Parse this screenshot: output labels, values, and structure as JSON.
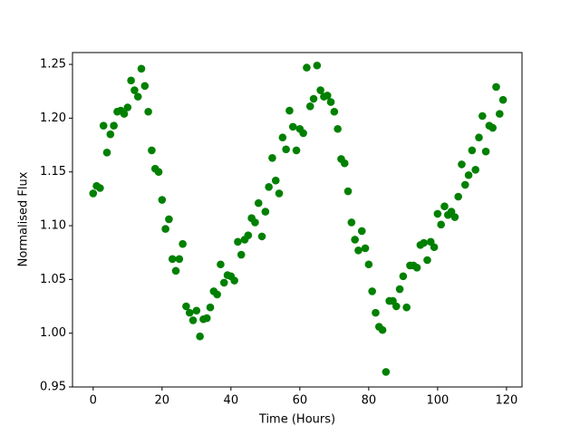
{
  "chart_data": {
    "type": "scatter",
    "x_label": "Time (Hours)",
    "y_label": "Normalised Flux",
    "color": "#008000",
    "grid": false,
    "xlim": [
      -6,
      124.5
    ],
    "ylim": [
      0.95,
      1.261
    ],
    "xticks": [
      0,
      20,
      40,
      60,
      80,
      100,
      120
    ],
    "yticks": [
      0.95,
      {
        "value": 1,
        "label": "1.00"
      },
      1.05,
      {
        "value": 1.1,
        "label": "1.10"
      },
      1.15,
      {
        "value": 1.2,
        "label": "1.20"
      },
      1.25
    ],
    "x": [
      0,
      1,
      2,
      3,
      4,
      5,
      6,
      7,
      8,
      9,
      10,
      11,
      12,
      13,
      14,
      15,
      16,
      17,
      18,
      19,
      20,
      21,
      22,
      23,
      24,
      25,
      26,
      27,
      28,
      29,
      30,
      31,
      32,
      33,
      34,
      35,
      36,
      37,
      38,
      39,
      40,
      41,
      42,
      43,
      44,
      45,
      46,
      47,
      48,
      49,
      50,
      51,
      52,
      53,
      54,
      55,
      56,
      57,
      58,
      59,
      60,
      61,
      62,
      63,
      64,
      65,
      66,
      67,
      68,
      69,
      70,
      71,
      72,
      73,
      74,
      75,
      76,
      77,
      78,
      79,
      80,
      81,
      82,
      83,
      84,
      85,
      86,
      87,
      88,
      89,
      90,
      91,
      92,
      93,
      94,
      95,
      96,
      97,
      98,
      99,
      100,
      101,
      102,
      103,
      104,
      105,
      106,
      107,
      108,
      109,
      110,
      111,
      112,
      113,
      114,
      115,
      116,
      117,
      118,
      119
    ],
    "values": [
      1.13,
      1.137,
      1.135,
      1.193,
      1.168,
      1.185,
      1.193,
      1.206,
      1.207,
      1.204,
      1.21,
      1.235,
      1.226,
      1.22,
      1.246,
      1.23,
      1.206,
      1.17,
      1.153,
      1.15,
      1.124,
      1.097,
      1.106,
      1.069,
      1.058,
      1.069,
      1.083,
      1.025,
      1.019,
      1.012,
      1.021,
      0.997,
      1.013,
      1.014,
      1.024,
      1.039,
      1.036,
      1.064,
      1.047,
      1.054,
      1.053,
      1.049,
      1.085,
      1.073,
      1.087,
      1.091,
      1.107,
      1.103,
      1.121,
      1.09,
      1.113,
      1.136,
      1.163,
      1.142,
      1.13,
      1.182,
      1.171,
      1.207,
      1.192,
      1.17,
      1.19,
      1.186,
      1.247,
      1.211,
      1.218,
      1.249,
      1.226,
      1.22,
      1.221,
      1.215,
      1.206,
      1.19,
      1.162,
      1.158,
      1.132,
      1.103,
      1.087,
      1.077,
      1.095,
      1.079,
      1.064,
      1.039,
      1.019,
      1.006,
      1.003,
      0.964,
      1.03,
      1.03,
      1.025,
      1.041,
      1.053,
      1.024,
      1.063,
      1.063,
      1.061,
      1.082,
      1.084,
      1.068,
      1.085,
      1.08,
      1.111,
      1.101,
      1.118,
      1.11,
      1.113,
      1.108,
      1.127,
      1.157,
      1.138,
      1.147,
      1.17,
      1.152,
      1.182,
      1.202,
      1.169,
      1.193,
      1.191,
      1.229,
      1.204,
      1.217
    ]
  }
}
